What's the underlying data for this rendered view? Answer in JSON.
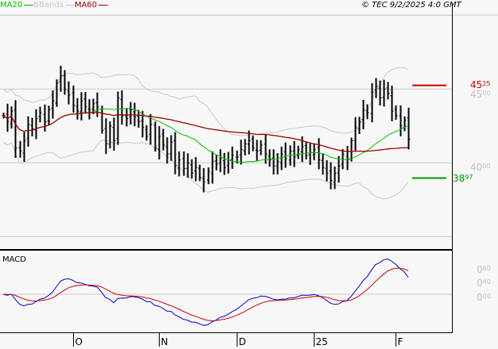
{
  "legend": [
    {
      "label": "MA20",
      "color": "#00c000"
    },
    {
      "label": "BBands",
      "color": "#c8c8c8"
    },
    {
      "label": "MA60",
      "color": "#a00000"
    }
  ],
  "copyright": "© TEC 9/2/2025 4:0 GMT",
  "price_axis": [
    {
      "main": "45",
      "sup": "00",
      "value": 45
    },
    {
      "main": "40",
      "sup": "00",
      "value": 40
    }
  ],
  "markers": {
    "resistance": {
      "main": "45",
      "sup": "25",
      "value": 45.25,
      "color": "#cc0000"
    },
    "support": {
      "main": "38",
      "sup": "97",
      "value": 38.97,
      "color": "#009900"
    }
  },
  "macd": {
    "title": "MACD",
    "axis": [
      {
        "main": "0",
        "sup": "80",
        "value": 0.8
      },
      {
        "main": "0",
        "sup": "40",
        "value": 0.4
      },
      {
        "main": "0",
        "sup": "00",
        "value": 0.0
      }
    ],
    "colors": {
      "macd": "#0000cc",
      "signal": "#cc0000"
    }
  },
  "months": [
    {
      "label": "O",
      "index": 17
    },
    {
      "label": "N",
      "index": 38
    },
    {
      "label": "D",
      "index": 57
    },
    {
      "label": "25",
      "index": 76
    },
    {
      "label": "F",
      "index": 96
    }
  ],
  "chart_data": {
    "type": "ohlc",
    "ylim": [
      35,
      50
    ],
    "closes": [
      43.2,
      42.8,
      43.5,
      41.0,
      40.8,
      41.5,
      42.6,
      42.3,
      43.0,
      43.4,
      42.8,
      43.6,
      44.2,
      45.4,
      45.9,
      45.0,
      44.6,
      43.9,
      43.5,
      44.2,
      43.8,
      43.6,
      44.0,
      43.8,
      42.2,
      41.3,
      42.5,
      41.5,
      44.4,
      43.2,
      43.0,
      43.6,
      43.1,
      42.8,
      42.4,
      41.8,
      42.6,
      41.0,
      41.8,
      41.2,
      40.6,
      41.4,
      39.8,
      40.2,
      39.6,
      40.0,
      39.3,
      39.7,
      39.0,
      38.7,
      39.4,
      40.1,
      39.9,
      40.3,
      39.7,
      40.2,
      40.5,
      40.4,
      40.9,
      41.3,
      41.5,
      41.0,
      40.8,
      41.2,
      40.6,
      40.2,
      39.8,
      40.1,
      40.6,
      40.3,
      40.8,
      40.4,
      40.9,
      41.1,
      40.5,
      40.7,
      40.9,
      40.2,
      39.7,
      39.3,
      38.8,
      39.3,
      39.8,
      40.6,
      40.2,
      41.5,
      42.4,
      42.8,
      43.6,
      43.4,
      44.8,
      45.2,
      44.4,
      45.0,
      44.7,
      43.5,
      43.2,
      42.5,
      42.9,
      41.6
    ],
    "indicators": [
      "MA20",
      "MA60",
      "BBands(20,2)",
      "MACD(12,26,9)"
    ]
  }
}
